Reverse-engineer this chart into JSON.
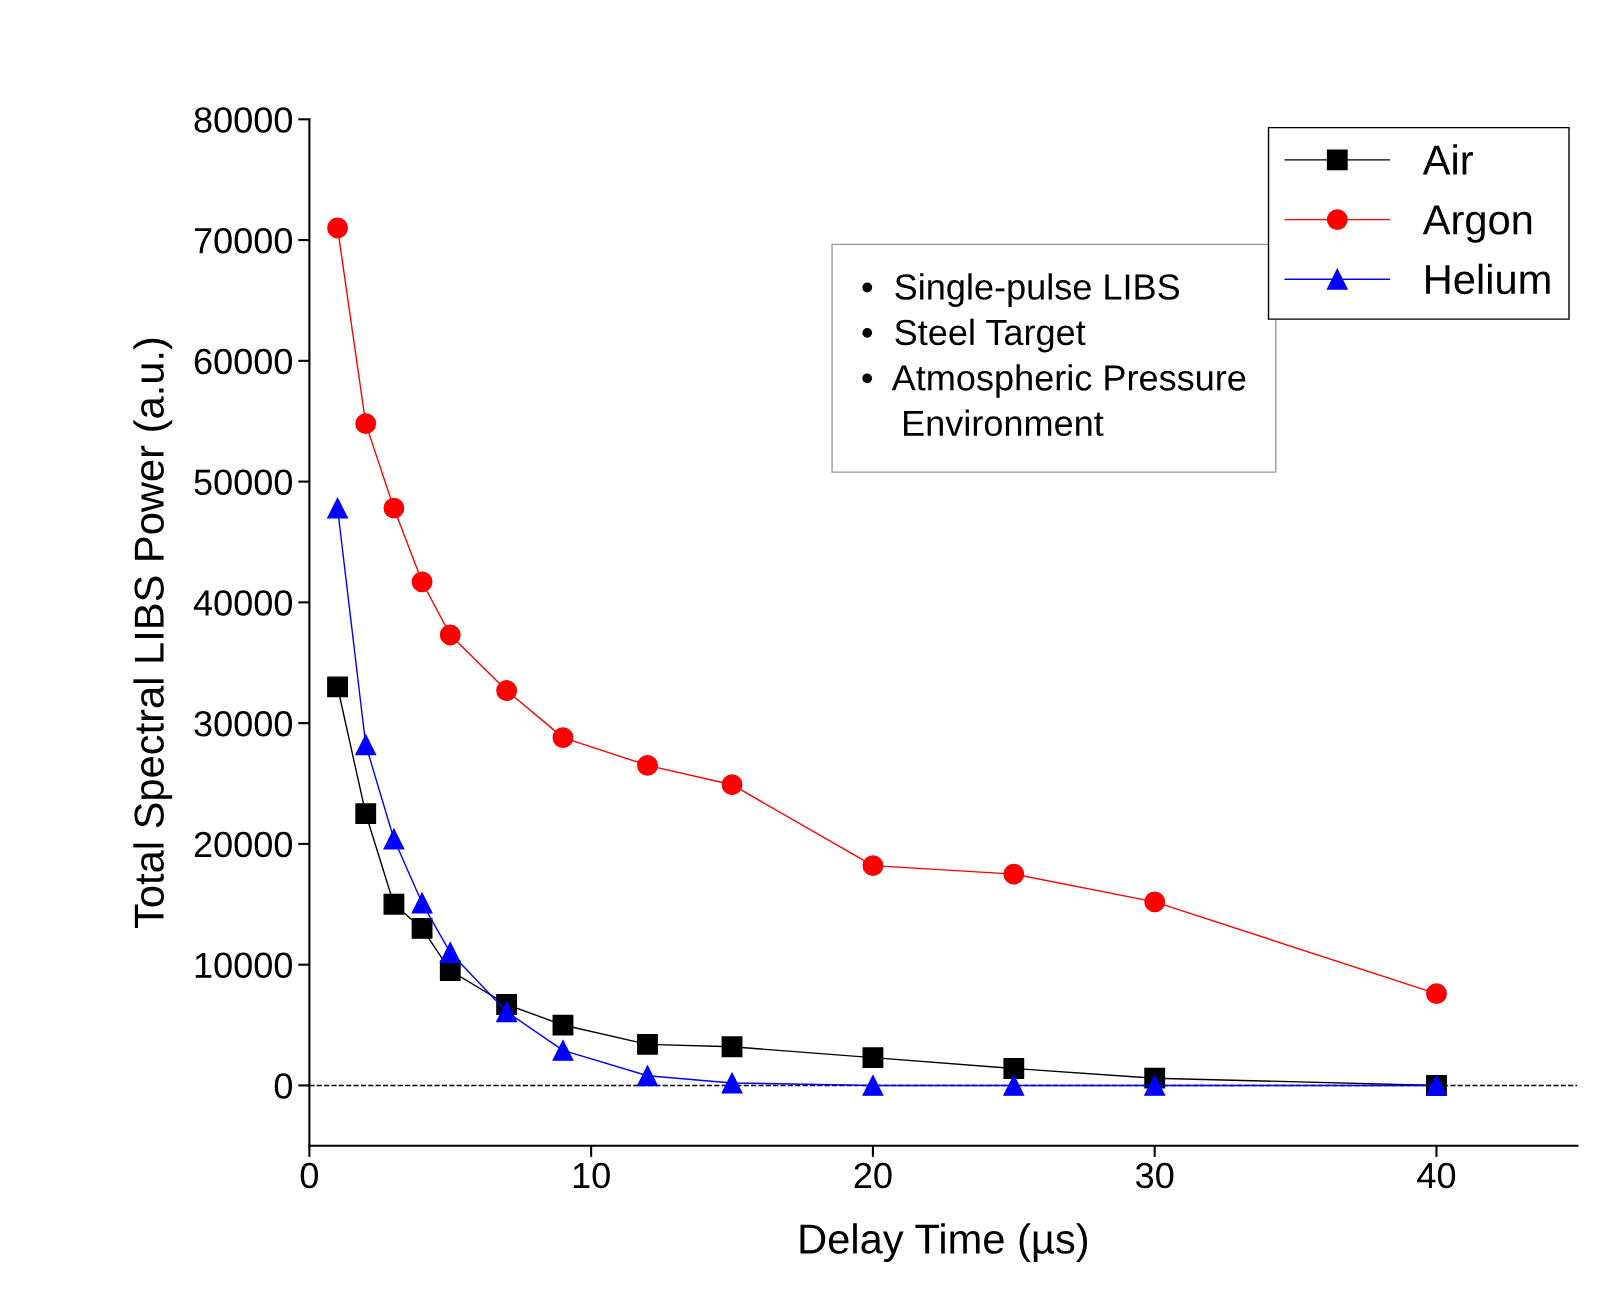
{
  "chart_data": {
    "type": "line",
    "xlabel": "Delay Time (µs)",
    "ylabel": "Total Spectral LIBS Power (a.u.)",
    "x": [
      1,
      2,
      3,
      4,
      5,
      7,
      9,
      12,
      15,
      20,
      25,
      30,
      40
    ],
    "series": [
      {
        "name": "Air",
        "color": "#000000",
        "marker": "square",
        "values": [
          33000,
          22500,
          15000,
          13000,
          9500,
          6700,
          5000,
          3400,
          3200,
          2300,
          1400,
          600,
          0
        ]
      },
      {
        "name": "Argon",
        "color": "#ff0000",
        "marker": "circle",
        "values": [
          71000,
          54800,
          47800,
          41700,
          37300,
          32700,
          28800,
          26500,
          24900,
          18200,
          17500,
          15200,
          7600
        ]
      },
      {
        "name": "Helium",
        "color": "#0000ff",
        "marker": "triangle",
        "values": [
          47800,
          28200,
          20400,
          15100,
          11000,
          6100,
          2900,
          800,
          200,
          0,
          0,
          0,
          0
        ]
      }
    ],
    "xlim": [
      0,
      45
    ],
    "xticks": [
      0,
      10,
      20,
      30,
      40
    ],
    "ylim": [
      -5000,
      80000
    ],
    "yticks": [
      0,
      10000,
      20000,
      30000,
      40000,
      50000,
      60000,
      70000,
      80000
    ],
    "ref_lines": [
      {
        "axis": "y",
        "value": 0,
        "line_style": "dashed",
        "color": "#000000"
      }
    ],
    "annotations": [
      "•  Single-pulse LIBS\n•  Steel Target\n•  Atmospheric Pressure\n    Environment"
    ],
    "legend": "top right",
    "grid": false,
    "line_style": "solid"
  }
}
